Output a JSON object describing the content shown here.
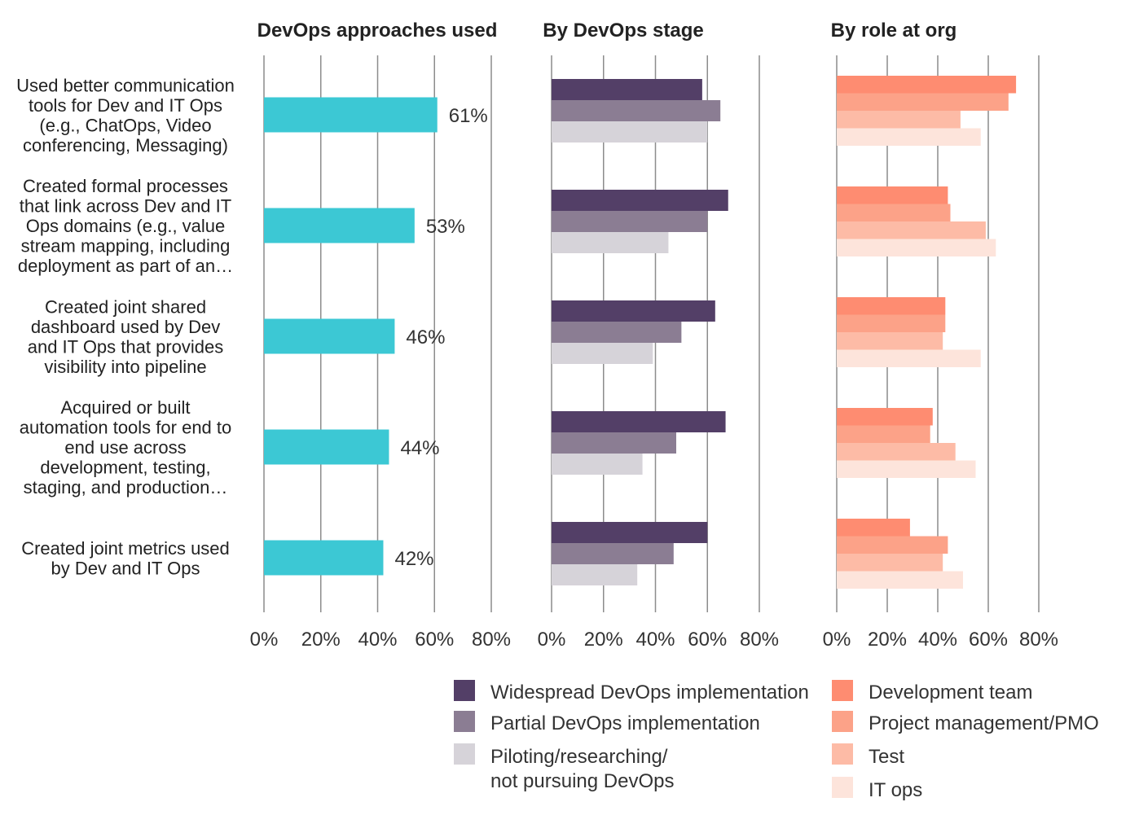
{
  "chart_data": [
    {
      "type": "bar",
      "title": "DevOps approaches used",
      "orientation": "horizontal",
      "categories": [
        [
          "Used better communication",
          "tools for Dev and IT Ops",
          "(e.g., ChatOps, Video",
          "conferencing, Messaging)"
        ],
        [
          "Created formal processes",
          "that link across Dev and IT",
          "Ops domains (e.g., value",
          "stream mapping, including",
          "deployment as part of an…"
        ],
        [
          "Created joint shared",
          "dashboard used by Dev",
          "and IT Ops that provides",
          "visibility into pipeline"
        ],
        [
          "Acquired or built",
          "automation tools for end to",
          "end use across",
          "development, testing,",
          "staging, and production…"
        ],
        [
          "Created joint metrics used",
          "by Dev and IT Ops"
        ]
      ],
      "values": [
        61,
        53,
        46,
        44,
        42
      ],
      "value_labels": [
        "61%",
        "53%",
        "46%",
        "44%",
        "42%"
      ],
      "xlim": [
        0,
        80
      ],
      "xticks": [
        "0%",
        "20%",
        "40%",
        "60%",
        "80%"
      ],
      "grid": true,
      "color": "#3cc8d4"
    },
    {
      "type": "bar",
      "title": "By DevOps stage",
      "orientation": "horizontal",
      "series": [
        {
          "name": "Widespread DevOps implementation",
          "values": [
            58,
            68,
            63,
            67,
            60
          ],
          "color": "#533f67"
        },
        {
          "name": "Partial DevOps implementation",
          "values": [
            65,
            60,
            50,
            48,
            47
          ],
          "color": "#8b7d93"
        },
        {
          "name": "Piloting/researching/ not pursuing DevOps",
          "label_lines": [
            "Piloting/researching/",
            "not pursuing DevOps"
          ],
          "values": [
            60,
            45,
            39,
            35,
            33
          ],
          "color": "#d6d3d9"
        }
      ],
      "xlim": [
        0,
        80
      ],
      "xticks": [
        "0%",
        "20%",
        "40%",
        "60%",
        "80%"
      ],
      "grid": true,
      "legend": "bottom"
    },
    {
      "type": "bar",
      "title": "By role at org",
      "orientation": "horizontal",
      "series": [
        {
          "name": "Development team",
          "values": [
            71,
            44,
            43,
            38,
            29
          ],
          "color": "#fe8c71"
        },
        {
          "name": "Project management/PMO",
          "values": [
            68,
            45,
            43,
            37,
            44
          ],
          "color": "#fca288"
        },
        {
          "name": "Test",
          "values": [
            49,
            59,
            42,
            47,
            42
          ],
          "color": "#fdbba6"
        },
        {
          "name": "IT ops",
          "values": [
            57,
            63,
            57,
            55,
            50
          ],
          "color": "#fde4db"
        }
      ],
      "xlim": [
        0,
        80
      ],
      "xticks": [
        "0%",
        "20%",
        "40%",
        "60%",
        "80%"
      ],
      "grid": true,
      "legend": "bottom"
    }
  ]
}
